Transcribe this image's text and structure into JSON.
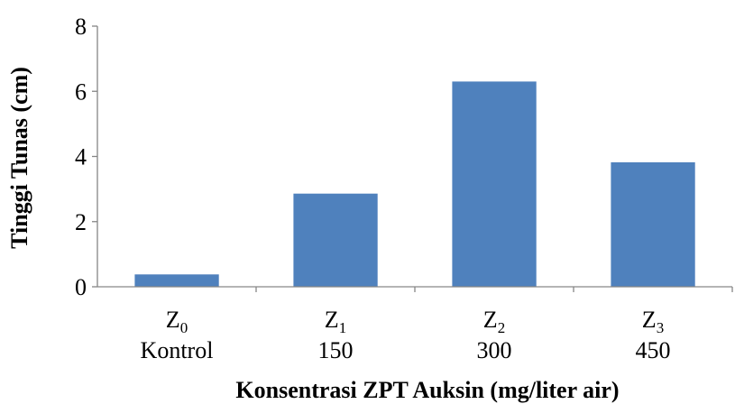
{
  "chart_data": {
    "type": "bar",
    "categories": [
      {
        "symbol": "Z",
        "sub": "0",
        "label": "Kontrol"
      },
      {
        "symbol": "Z",
        "sub": "1",
        "label": "150"
      },
      {
        "symbol": "Z",
        "sub": "2",
        "label": "300"
      },
      {
        "symbol": "Z",
        "sub": "3",
        "label": "450"
      }
    ],
    "values": [
      0.38,
      2.86,
      6.3,
      3.82
    ],
    "ylim": [
      0,
      8
    ],
    "yticks": [
      "0",
      "2",
      "4",
      "6",
      "8"
    ],
    "xlabel": "Konsentrasi ZPT Auksin (mg/liter air)",
    "ylabel": "Tinggi Tunas (cm)",
    "grid": false,
    "legend": "none",
    "bar_color": "#4f81bd"
  }
}
